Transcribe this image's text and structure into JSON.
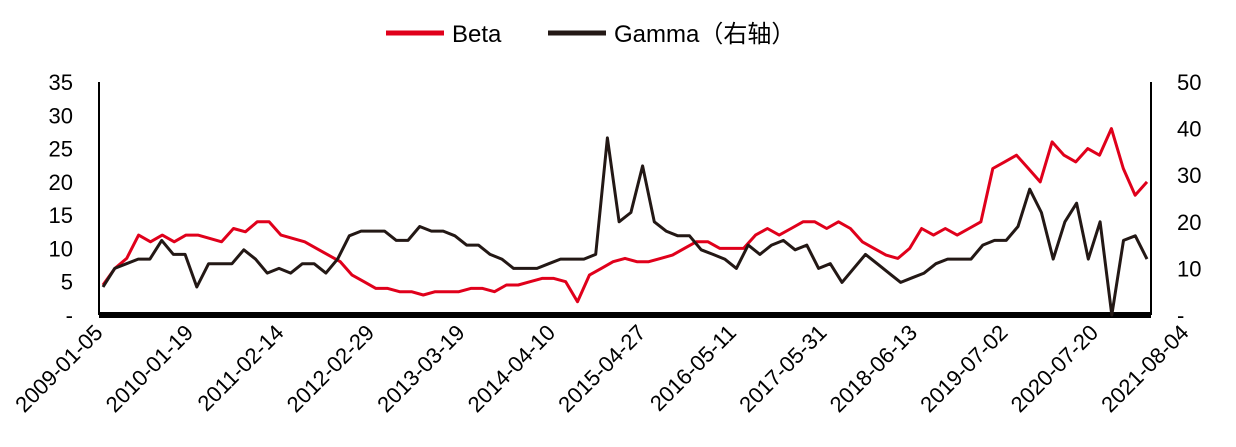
{
  "chart_data": {
    "type": "line",
    "title": "",
    "xlabel": "",
    "ylabel": "",
    "legend_position": "top-center",
    "grid": false,
    "y_left": {
      "ylim": [
        0,
        35
      ],
      "ticks": [
        "-",
        "5",
        "10",
        "15",
        "20",
        "25",
        "30",
        "35"
      ],
      "tick_values": [
        0,
        5,
        10,
        15,
        20,
        25,
        30,
        35
      ]
    },
    "y_right": {
      "ylim": [
        0,
        50
      ],
      "ticks": [
        "-",
        "10",
        "20",
        "30",
        "40",
        "50"
      ],
      "tick_values": [
        0,
        10,
        20,
        30,
        40,
        50
      ]
    },
    "x_ticks": [
      "2009-01-05",
      "2010-01-19",
      "2011-02-14",
      "2012-02-29",
      "2013-03-19",
      "2014-04-10",
      "2015-04-27",
      "2016-05-11",
      "2017-05-31",
      "2018-06-13",
      "2019-07-02",
      "2020-07-20",
      "2021-08-04"
    ],
    "series": [
      {
        "name": "Beta",
        "axis": "left",
        "color": "#e0001b",
        "values": [
          4.5,
          7,
          8.5,
          12,
          11,
          12,
          11,
          12,
          12,
          11.5,
          11,
          13,
          12.5,
          14,
          14,
          12,
          11.5,
          11,
          10,
          9,
          8,
          6,
          5,
          4,
          4,
          3.5,
          3.5,
          3,
          3.5,
          3.5,
          3.5,
          4,
          4,
          3.5,
          4.5,
          4.5,
          5,
          5.5,
          5.5,
          5,
          2,
          6,
          7,
          8,
          8.5,
          8,
          8,
          8.5,
          9,
          10,
          11,
          11,
          10,
          10,
          10,
          12,
          13,
          12,
          13,
          14,
          14,
          13,
          14,
          13,
          11,
          10,
          9,
          8.5,
          10,
          13,
          12,
          13,
          12,
          13,
          14,
          22,
          23,
          24,
          22,
          20,
          26,
          24,
          23,
          25,
          24,
          28,
          22,
          18,
          20
        ]
      },
      {
        "name": "Gamma（右轴）",
        "axis": "right",
        "color": "#231815",
        "values": [
          6,
          10,
          11,
          12,
          12,
          16,
          13,
          13,
          6,
          11,
          11,
          11,
          14,
          12,
          9,
          10,
          9,
          11,
          11,
          9,
          12,
          17,
          18,
          18,
          18,
          16,
          16,
          19,
          18,
          18,
          17,
          15,
          15,
          13,
          12,
          10,
          10,
          10,
          11,
          12,
          12,
          12,
          13,
          38,
          20,
          22,
          32,
          20,
          18,
          17,
          17,
          14,
          13,
          12,
          10,
          15,
          13,
          15,
          16,
          14,
          15,
          10,
          11,
          7,
          10,
          13,
          11,
          9,
          7,
          8,
          9,
          11,
          12,
          12,
          12,
          15,
          16,
          16,
          19,
          27,
          22,
          12,
          20,
          24,
          12,
          20,
          0,
          16,
          17,
          12
        ]
      }
    ]
  }
}
